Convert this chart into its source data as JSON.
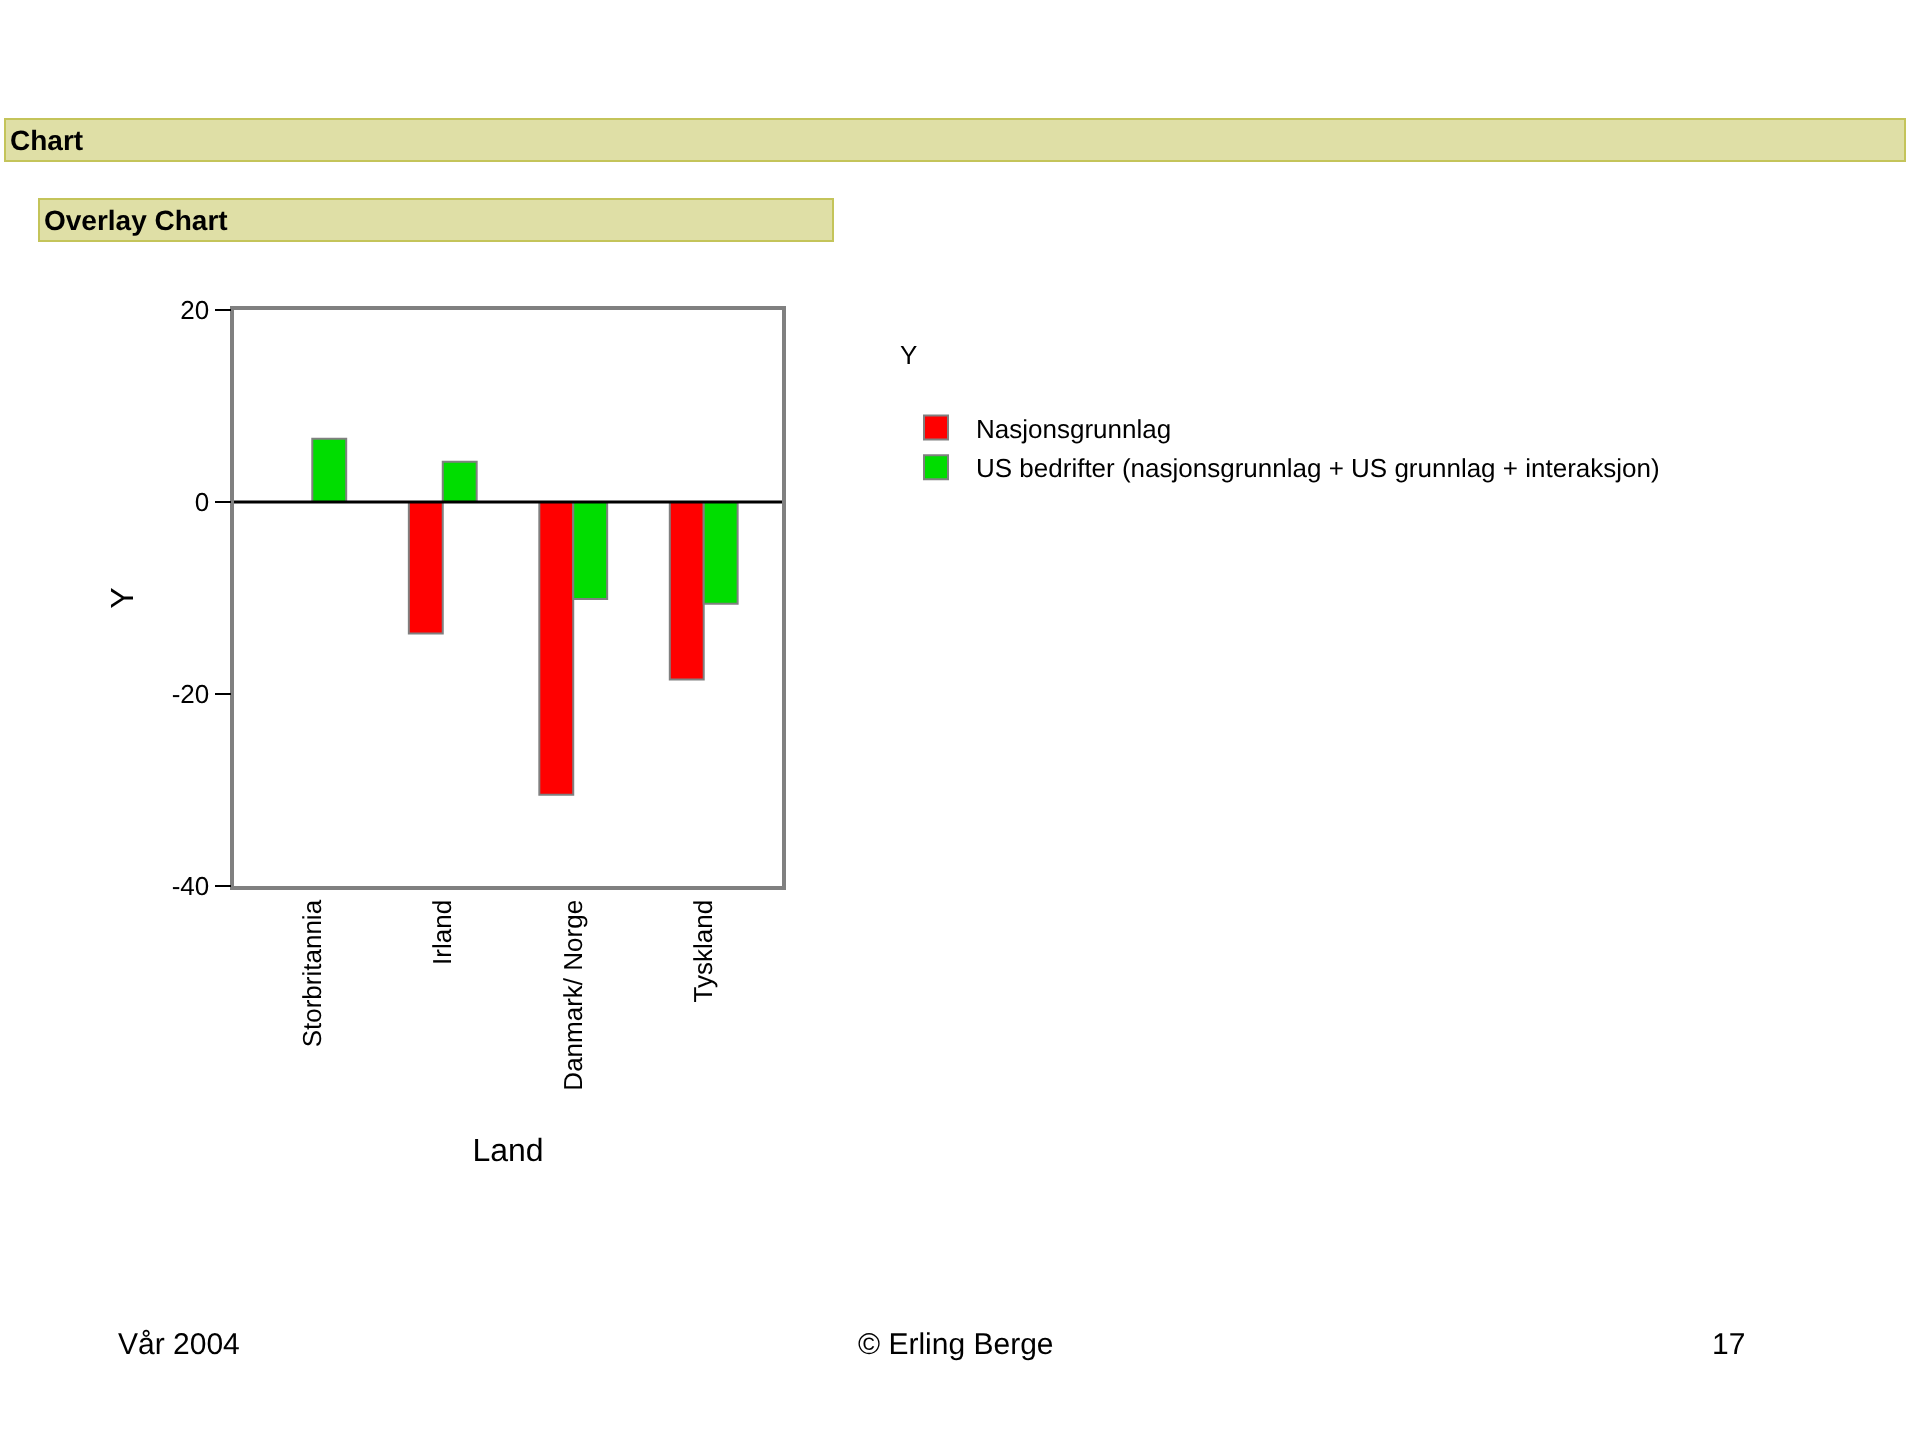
{
  "chart_data": {
    "type": "bar",
    "title": "Chart",
    "subtitle": "Overlay Chart",
    "xlabel": "Land",
    "ylabel": "Y",
    "legend_title": "Y",
    "categories": [
      "Storbritannia",
      "Irland",
      "Danmark/ Norge",
      "Tyskland"
    ],
    "series": [
      {
        "name": "Nasjonsgrunnlag",
        "color": "#ff0000",
        "values": [
          null,
          -13.7,
          -30.5,
          -18.5
        ]
      },
      {
        "name": "US bedrifter (nasjonsgrunnlag + US grunnlag + interaksjon)",
        "color": "#00dd00",
        "values": [
          6.6,
          4.2,
          -10.1,
          -10.6
        ]
      }
    ],
    "ylim": [
      -40,
      20
    ],
    "ref_lines": [
      {
        "axis": "y",
        "value": 0,
        "color": "#000000"
      }
    ],
    "yticks": [
      -40,
      -20,
      0,
      20
    ],
    "legend": "right",
    "annotations": [
      "Vår 2004",
      "© Erling Berge",
      "17"
    ]
  }
}
